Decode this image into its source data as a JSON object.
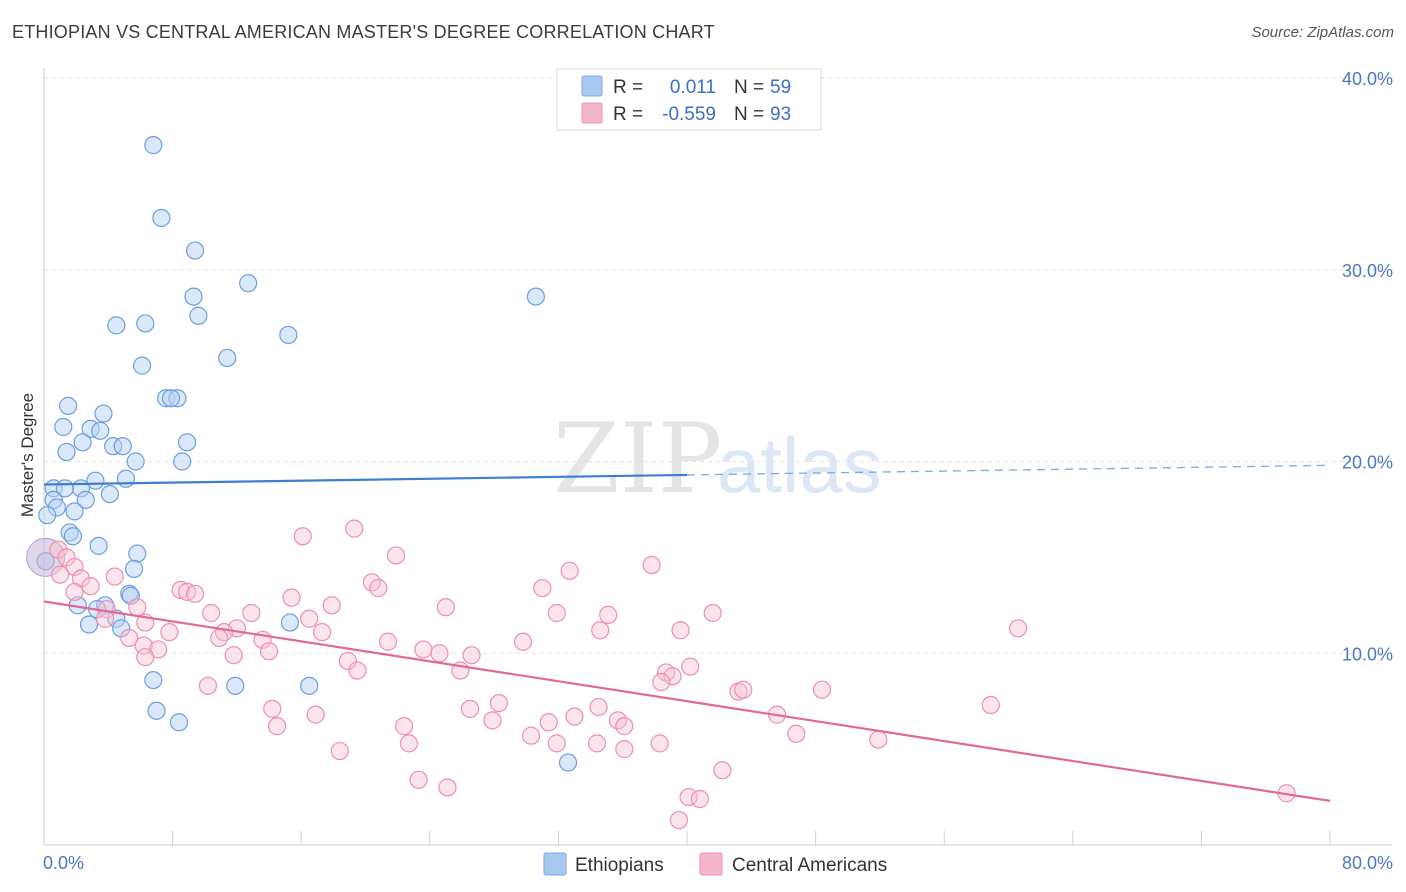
{
  "header": {
    "title": "ETHIOPIAN VS CENTRAL AMERICAN MASTER'S DEGREE CORRELATION CHART",
    "source": "Source: ZipAtlas.com"
  },
  "watermark": {
    "zip": "ZIP",
    "atlas": "atlas"
  },
  "legend": {
    "rows": [
      {
        "r_label": "R =",
        "r_value": "0.011",
        "n_label": "N =",
        "n_value": "59",
        "color": "#a9c8f0"
      },
      {
        "r_label": "R =",
        "r_value": "-0.559",
        "n_label": "N =",
        "n_value": "93",
        "color": "#f5b8cb"
      }
    ]
  },
  "bottom_legend": {
    "items": [
      {
        "label": "Ethiopians",
        "color": "#a9c8f0"
      },
      {
        "label": "Central Americans",
        "color": "#f5b8cb"
      }
    ]
  },
  "chart_data": {
    "type": "scatter",
    "title": "ETHIOPIAN VS CENTRAL AMERICAN MASTER'S DEGREE CORRELATION CHART",
    "xlabel": "",
    "ylabel": "Master's Degree",
    "xlim": [
      0,
      80
    ],
    "ylim": [
      0,
      40
    ],
    "x_tick_labels": [
      "0.0%",
      "80.0%"
    ],
    "y_ticks": [
      10,
      20,
      30,
      40
    ],
    "y_tick_labels": [
      "10.0%",
      "20.0%",
      "30.0%",
      "40.0%"
    ],
    "grid": true,
    "legend_position": "top-center",
    "series": [
      {
        "name": "Ethiopians",
        "color": "#7aaae6",
        "trend": {
          "x": [
            0,
            40
          ],
          "y": [
            18.8,
            19.3
          ],
          "dashed_to_x": 80,
          "dashed_to_y": 19.8
        },
        "points": [
          [
            6.8,
            36.5
          ],
          [
            7.3,
            32.7
          ],
          [
            9.4,
            31.0
          ],
          [
            12.7,
            29.3
          ],
          [
            9.3,
            28.6
          ],
          [
            30.6,
            28.6
          ],
          [
            9.6,
            27.6
          ],
          [
            6.3,
            27.2
          ],
          [
            4.5,
            27.1
          ],
          [
            15.2,
            26.6
          ],
          [
            11.4,
            25.4
          ],
          [
            6.1,
            25.0
          ],
          [
            7.6,
            23.3
          ],
          [
            8.3,
            23.3
          ],
          [
            7.9,
            23.3
          ],
          [
            1.5,
            22.9
          ],
          [
            3.7,
            22.5
          ],
          [
            1.2,
            21.8
          ],
          [
            2.9,
            21.7
          ],
          [
            3.5,
            21.6
          ],
          [
            2.4,
            21.0
          ],
          [
            8.9,
            21.0
          ],
          [
            4.3,
            20.8
          ],
          [
            4.9,
            20.8
          ],
          [
            1.4,
            20.5
          ],
          [
            8.6,
            20.0
          ],
          [
            5.7,
            20.0
          ],
          [
            0.6,
            18.6
          ],
          [
            3.2,
            19.0
          ],
          [
            5.1,
            19.1
          ],
          [
            2.3,
            18.6
          ],
          [
            1.3,
            18.6
          ],
          [
            0.6,
            18.0
          ],
          [
            4.1,
            18.3
          ],
          [
            2.6,
            18.0
          ],
          [
            0.8,
            17.6
          ],
          [
            1.9,
            17.4
          ],
          [
            0.2,
            17.2
          ],
          [
            1.6,
            16.3
          ],
          [
            1.8,
            16.1
          ],
          [
            3.4,
            15.6
          ],
          [
            5.8,
            15.2
          ],
          [
            5.6,
            14.4
          ],
          [
            0.1,
            14.8
          ],
          [
            5.3,
            13.1
          ],
          [
            5.4,
            13.0
          ],
          [
            2.1,
            12.5
          ],
          [
            3.8,
            12.5
          ],
          [
            3.3,
            12.3
          ],
          [
            4.5,
            11.8
          ],
          [
            15.3,
            11.6
          ],
          [
            2.8,
            11.5
          ],
          [
            4.8,
            11.3
          ],
          [
            6.8,
            8.6
          ],
          [
            11.9,
            8.3
          ],
          [
            16.5,
            8.3
          ],
          [
            7.0,
            7.0
          ],
          [
            8.4,
            6.4
          ],
          [
            32.6,
            4.3
          ]
        ],
        "big_point": [
          0.1,
          15.0
        ]
      },
      {
        "name": "Central Americans",
        "color": "#ee8fac",
        "trend": {
          "x": [
            0,
            80
          ],
          "y": [
            12.7,
            2.3
          ]
        },
        "points": [
          [
            0.9,
            15.4
          ],
          [
            1.4,
            15.0
          ],
          [
            1.9,
            14.5
          ],
          [
            1.0,
            14.1
          ],
          [
            4.4,
            14.0
          ],
          [
            2.3,
            13.9
          ],
          [
            2.9,
            13.5
          ],
          [
            1.9,
            13.2
          ],
          [
            8.5,
            13.3
          ],
          [
            8.9,
            13.2
          ],
          [
            9.4,
            13.1
          ],
          [
            20.4,
            13.7
          ],
          [
            20.8,
            13.4
          ],
          [
            31.0,
            13.4
          ],
          [
            16.1,
            16.1
          ],
          [
            19.3,
            16.5
          ],
          [
            21.9,
            15.1
          ],
          [
            32.7,
            14.3
          ],
          [
            37.8,
            14.6
          ],
          [
            15.4,
            12.9
          ],
          [
            17.9,
            12.5
          ],
          [
            25.0,
            12.4
          ],
          [
            3.9,
            12.3
          ],
          [
            5.8,
            12.4
          ],
          [
            10.4,
            12.1
          ],
          [
            12.9,
            12.1
          ],
          [
            31.9,
            12.1
          ],
          [
            35.1,
            12.0
          ],
          [
            41.6,
            12.1
          ],
          [
            3.8,
            11.8
          ],
          [
            6.3,
            11.6
          ],
          [
            16.5,
            11.8
          ],
          [
            7.8,
            11.1
          ],
          [
            12.0,
            11.3
          ],
          [
            11.2,
            11.1
          ],
          [
            17.3,
            11.1
          ],
          [
            34.6,
            11.2
          ],
          [
            39.6,
            11.2
          ],
          [
            5.3,
            10.8
          ],
          [
            10.9,
            10.8
          ],
          [
            13.6,
            10.7
          ],
          [
            21.4,
            10.6
          ],
          [
            29.8,
            10.6
          ],
          [
            6.2,
            10.4
          ],
          [
            7.1,
            10.2
          ],
          [
            14.0,
            10.1
          ],
          [
            23.6,
            10.2
          ],
          [
            24.6,
            10.0
          ],
          [
            26.6,
            9.9
          ],
          [
            6.3,
            9.8
          ],
          [
            11.8,
            9.9
          ],
          [
            18.9,
            9.6
          ],
          [
            19.5,
            9.1
          ],
          [
            25.9,
            9.1
          ],
          [
            38.7,
            9.0
          ],
          [
            39.1,
            8.8
          ],
          [
            38.4,
            8.5
          ],
          [
            10.2,
            8.3
          ],
          [
            43.2,
            8.0
          ],
          [
            43.5,
            8.1
          ],
          [
            48.4,
            8.1
          ],
          [
            60.6,
            11.3
          ],
          [
            40.2,
            9.3
          ],
          [
            14.2,
            7.1
          ],
          [
            16.9,
            6.8
          ],
          [
            26.5,
            7.1
          ],
          [
            27.9,
            6.5
          ],
          [
            28.3,
            7.4
          ],
          [
            33.0,
            6.7
          ],
          [
            31.4,
            6.4
          ],
          [
            34.5,
            7.2
          ],
          [
            35.7,
            6.5
          ],
          [
            36.1,
            6.2
          ],
          [
            45.6,
            6.8
          ],
          [
            58.9,
            7.3
          ],
          [
            14.5,
            6.2
          ],
          [
            22.4,
            6.2
          ],
          [
            22.7,
            5.3
          ],
          [
            30.3,
            5.7
          ],
          [
            31.9,
            5.3
          ],
          [
            34.4,
            5.3
          ],
          [
            36.1,
            5.0
          ],
          [
            38.3,
            5.3
          ],
          [
            46.8,
            5.8
          ],
          [
            51.9,
            5.5
          ],
          [
            18.4,
            4.9
          ],
          [
            42.2,
            3.9
          ],
          [
            23.3,
            3.4
          ],
          [
            25.1,
            3.0
          ],
          [
            40.1,
            2.5
          ],
          [
            40.8,
            2.4
          ],
          [
            39.5,
            1.3
          ],
          [
            77.3,
            2.7
          ]
        ]
      }
    ]
  }
}
